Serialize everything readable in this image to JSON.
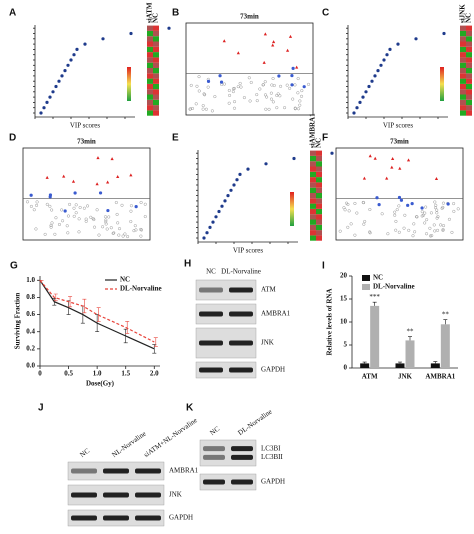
{
  "panels": {
    "A": {
      "label": "A",
      "axis_label": "VIP scores",
      "groups": [
        "siATM",
        "NC"
      ]
    },
    "B": {
      "label": "B",
      "title": "73min"
    },
    "C": {
      "label": "C",
      "axis_label": "VIP scores",
      "groups": [
        "siJNK",
        "NC"
      ]
    },
    "D": {
      "label": "D",
      "title": "73min"
    },
    "E": {
      "label": "E",
      "axis_label": "VIP scores",
      "groups": [
        "siAMBRA1",
        "NC"
      ]
    },
    "F": {
      "label": "F",
      "title": "73min"
    },
    "H": {
      "label": "H",
      "lanes": [
        "NC",
        "DL-Norvaline"
      ],
      "blots": [
        [
          "ATM"
        ],
        [
          "AMBRA1"
        ],
        [
          "JNK"
        ],
        [
          "GAPDH"
        ]
      ]
    },
    "J": {
      "label": "J",
      "lanes": [
        "NC",
        "NL-Norvaline",
        "siATM+NL-Norvaline"
      ],
      "blots": [
        [
          "AMBRA1"
        ],
        [
          "JNK"
        ],
        [
          "GAPDH"
        ]
      ]
    },
    "K": {
      "label": "K",
      "lanes": [
        "NC",
        "DL-Norvaline"
      ],
      "blots": [
        [
          "LC3BI",
          "LC3BII"
        ],
        [
          "GAPDH"
        ]
      ]
    }
  },
  "chart_data": [
    {
      "type": "line",
      "panel": "G",
      "x_label": "Dose(Gy)",
      "y_label": "Surviving Fraction",
      "x": [
        0,
        0.25,
        0.5,
        0.75,
        1,
        1.5,
        2
      ],
      "series": [
        {
          "name": "NC",
          "color": "#222222",
          "dashed": false,
          "values": [
            1.0,
            0.75,
            0.68,
            0.6,
            0.5,
            0.35,
            0.2
          ],
          "errors": [
            0,
            0.04,
            0.08,
            0.1,
            0.1,
            0.08,
            0.05
          ]
        },
        {
          "name": "DL-Norvaline",
          "color": "#e8433a",
          "dashed": true,
          "values": [
            1.0,
            0.8,
            0.75,
            0.7,
            0.6,
            0.45,
            0.28
          ],
          "errors": [
            0,
            0.04,
            0.06,
            0.08,
            0.08,
            0.07,
            0.05
          ]
        }
      ],
      "xlim": [
        0,
        2.1
      ],
      "xticks": [
        0,
        0.5,
        {
          "value": 1,
          "label": "1.0"
        },
        1.5,
        {
          "value": 2,
          "label": "2.0"
        }
      ],
      "ylim": [
        0,
        1.05
      ],
      "yticks": [
        {
          "value": 0,
          "label": "0.0"
        },
        0.2,
        0.4,
        0.6,
        0.8,
        {
          "value": 1,
          "label": "1.0"
        }
      ],
      "legend": "upper right"
    },
    {
      "type": "bar",
      "panel": "I",
      "y_label": "Relative levels of RNA",
      "categories": [
        "ATM",
        "JNK",
        "AMBRA1"
      ],
      "series": [
        {
          "name": "NC",
          "color": "#111111",
          "values": [
            1,
            1,
            1
          ],
          "errors": [
            0.3,
            0.3,
            0.4
          ]
        },
        {
          "name": "DL-Norvaline",
          "color": "#b0b0b0",
          "values": [
            13.5,
            6,
            9.5
          ],
          "errors": [
            0.8,
            0.8,
            1.0
          ]
        }
      ],
      "annotations": [
        "***",
        "**",
        "**"
      ],
      "ylim": [
        0,
        20
      ],
      "yticks": [
        0,
        5,
        10,
        15,
        20
      ],
      "legend": "upper left"
    }
  ]
}
